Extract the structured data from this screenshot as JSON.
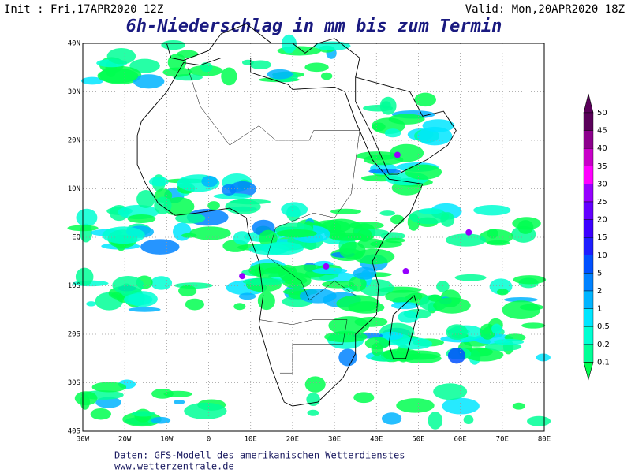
{
  "header": {
    "init": "Init : Fri,17APR2020 12Z",
    "valid": "Valid: Mon,20APR2020 18Z"
  },
  "title": "6h-Niederschlag in mm bis zum Termin",
  "map": {
    "lat_ticks": [
      "40N",
      "30N",
      "20N",
      "10N",
      "EQ",
      "10S",
      "20S",
      "30S",
      "40S"
    ],
    "lon_ticks": [
      "30W",
      "20W",
      "10W",
      "0",
      "10E",
      "20E",
      "30E",
      "40E",
      "50E",
      "60E",
      "70E",
      "80E"
    ]
  },
  "colorbar": {
    "levels": [
      50,
      45,
      40,
      35,
      30,
      25,
      20,
      15,
      10,
      5,
      2,
      1,
      0.5,
      0.2,
      0.1
    ],
    "colors": [
      "#5a005a",
      "#8c008c",
      "#c800c8",
      "#ff00ff",
      "#9600ff",
      "#6400ff",
      "#3c00ff",
      "#1e1eff",
      "#0050ff",
      "#0082ff",
      "#00b4ff",
      "#00e6ff",
      "#00ffd2",
      "#00ff96",
      "#00ff50"
    ]
  },
  "footer": {
    "line1": "Daten: GFS-Modell des amerikanischen Wetterdienstes",
    "line2": "www.wetterzentrale.de"
  }
}
